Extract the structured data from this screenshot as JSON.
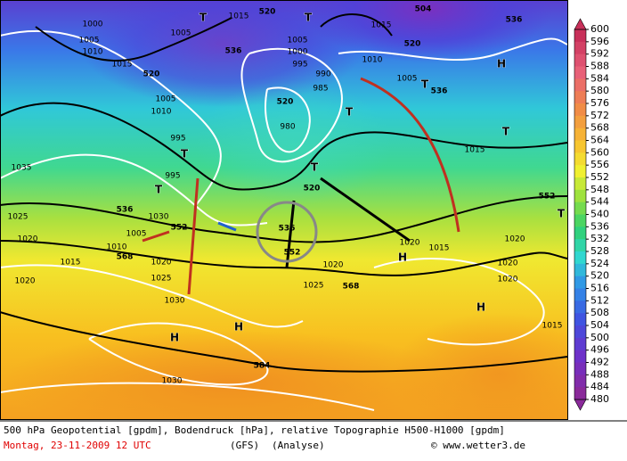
{
  "map": {
    "labels": [
      "504",
      "520",
      "1015",
      "T",
      "T",
      "1000",
      "1005",
      "1005",
      "536",
      "1005",
      "1000",
      "1015",
      "520",
      "536",
      "1010",
      "1015",
      "520",
      "995",
      "990",
      "985",
      "1010",
      "1005",
      "T",
      "536",
      "H",
      "1005",
      "1010",
      "520",
      "T",
      "980",
      "T",
      "995",
      "T",
      "1015",
      "1035",
      "995",
      "T",
      "520",
      "T",
      "552",
      "536",
      "1030",
      "552",
      "1025",
      "1010",
      "1005",
      "568",
      "1015",
      "1020",
      "1020",
      "1025",
      "536",
      "552",
      "1020",
      "1025",
      "568",
      "1020",
      "H",
      "1015",
      "1020",
      "1020",
      "1030",
      "1020",
      "H",
      "H",
      "H",
      "584",
      "1030",
      "1015",
      "T",
      "1020"
    ]
  },
  "legend": {
    "levels": [
      600,
      596,
      592,
      588,
      584,
      580,
      576,
      572,
      568,
      564,
      560,
      556,
      552,
      548,
      544,
      540,
      536,
      532,
      528,
      524,
      520,
      516,
      512,
      508,
      504,
      500,
      496,
      492,
      488,
      484,
      480
    ]
  },
  "footer": {
    "description": "500 hPa Geopotential [gpdm], Bodendruck [hPa], relative Topographie H500-H1000 [gpdm]",
    "date": "Montag, 23-11-2009  12 UTC",
    "model": "(GFS)",
    "run": "(Analyse)",
    "credit": "© www.wetter3.de"
  }
}
